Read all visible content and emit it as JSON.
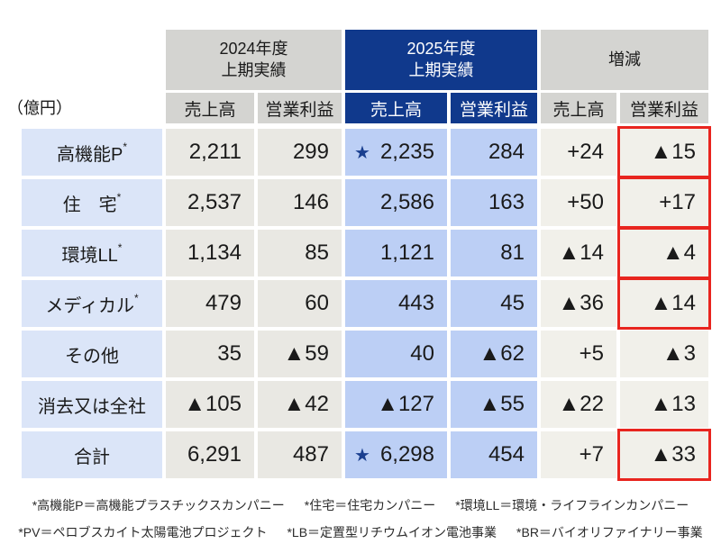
{
  "unit_label": "（億円）",
  "header": {
    "group_2024_line1": "2024年度",
    "group_2024_line2": "上期実績",
    "group_2025_line1": "2025年度",
    "group_2025_line2": "上期実績",
    "group_change": "増減",
    "col_sales": "売上高",
    "col_op": "営業利益"
  },
  "icons": {
    "star": "★"
  },
  "rows": [
    {
      "label": "高機能P",
      "sup": "*",
      "star": true,
      "s24": "2,211",
      "o24": "299",
      "s25": "2,235",
      "o25": "284",
      "cs": "+24",
      "co": "▲15",
      "co_highlighted": true
    },
    {
      "label": "住　宅",
      "sup": "*",
      "star": false,
      "s24": "2,537",
      "o24": "146",
      "s25": "2,586",
      "o25": "163",
      "cs": "+50",
      "co": "+17",
      "co_highlighted": true
    },
    {
      "label": "環境LL",
      "sup": "*",
      "star": false,
      "s24": "1,134",
      "o24": "85",
      "s25": "1,121",
      "o25": "81",
      "cs": "▲14",
      "co": "▲4",
      "co_highlighted": true
    },
    {
      "label": "メディカル",
      "sup": "*",
      "star": false,
      "s24": "479",
      "o24": "60",
      "s25": "443",
      "o25": "45",
      "cs": "▲36",
      "co": "▲14",
      "co_highlighted": true
    },
    {
      "label": "その他",
      "sup": "",
      "star": false,
      "s24": "35",
      "o24": "▲59",
      "s25": "40",
      "o25": "▲62",
      "cs": "+5",
      "co": "▲3",
      "co_highlighted": false
    },
    {
      "label": "消去又は全社",
      "sup": "",
      "star": false,
      "s24": "▲105",
      "o24": "▲42",
      "s25": "▲127",
      "o25": "▲55",
      "cs": "▲22",
      "co": "▲13",
      "co_highlighted": false
    },
    {
      "label": "合計",
      "sup": "",
      "star": true,
      "s24": "6,291",
      "o24": "487",
      "s25": "6,298",
      "o25": "454",
      "cs": "+7",
      "co": "▲33",
      "co_highlighted": true
    }
  ],
  "footnotes": {
    "line1": [
      "*高機能P＝高機能プラスチックスカンパニー",
      "*住宅＝住宅カンパニー",
      "*環境LL＝環境・ライフラインカンパニー"
    ],
    "line2": [
      "*PV＝ペロブスカイト太陽電池プロジェクト",
      "*LB＝定置型リチウムイオン電池事業",
      "*BR＝バイオリファイナリー事業"
    ]
  },
  "colors": {
    "navy_header": "#10398c",
    "data_cell_blue": "#bccff5",
    "label_cell_blue": "#dbe5f8",
    "cell_gray_2024": "#e9e8e3",
    "cell_gray_change": "#f1f0ea",
    "header_gray": "#d4d4d1",
    "highlight_red": "#e8251f",
    "star_blue": "#1a3f8f"
  },
  "chart_data": {
    "type": "table",
    "unit": "億円",
    "column_groups": [
      "2024年度上期実績",
      "2025年度上期実績",
      "増減"
    ],
    "columns": [
      "売上高",
      "営業利益",
      "売上高",
      "営業利益",
      "売上高",
      "営業利益"
    ],
    "row_labels": [
      "高機能P*",
      "住　宅*",
      "環境LL*",
      "メディカル*",
      "その他",
      "消去又は全社",
      "合計"
    ],
    "values": [
      [
        2211,
        299,
        2235,
        284,
        24,
        -15
      ],
      [
        2537,
        146,
        2586,
        163,
        50,
        17
      ],
      [
        1134,
        85,
        1121,
        81,
        -14,
        -4
      ],
      [
        479,
        60,
        443,
        45,
        -36,
        -14
      ],
      [
        35,
        -59,
        40,
        -62,
        5,
        -3
      ],
      [
        -105,
        -42,
        -127,
        -55,
        -22,
        -13
      ],
      [
        6291,
        487,
        6298,
        454,
        7,
        -33
      ]
    ],
    "notes": "▲ denotes negative values; red boxes highlight 営業利益 changes for 高機能P, 住宅, 環境LL, メディカル, 合計; ★ marks 2025年度 売上高 of 高機能P and 合計"
  }
}
